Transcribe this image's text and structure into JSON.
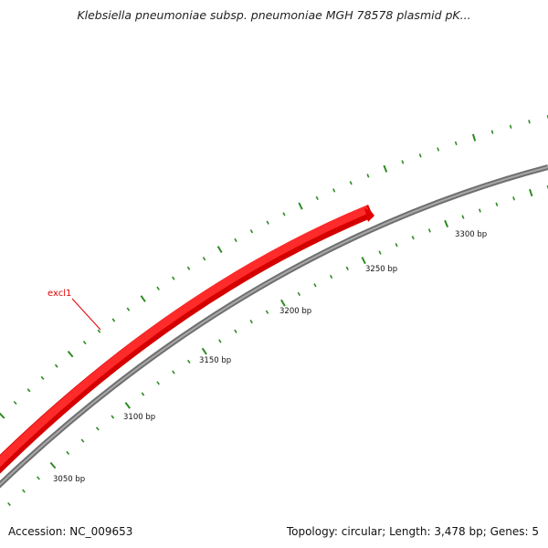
{
  "title": "Klebsiella pneumoniae subsp. pneumoniae MGH 78578 plasmid pK...",
  "footer": {
    "accession": "Accession: NC_009653",
    "summary": "Topology: circular; Length: 3,478 bp; Genes: 5"
  },
  "gene": {
    "name": "excl1",
    "color": "#ff1a1a"
  },
  "backbone_color": "#808080",
  "tick_color": "#2e8b22",
  "tick_labels": [
    "3050 bp",
    "3100 bp",
    "3150 bp",
    "3200 bp",
    "3250 bp",
    "3300 bp"
  ]
}
